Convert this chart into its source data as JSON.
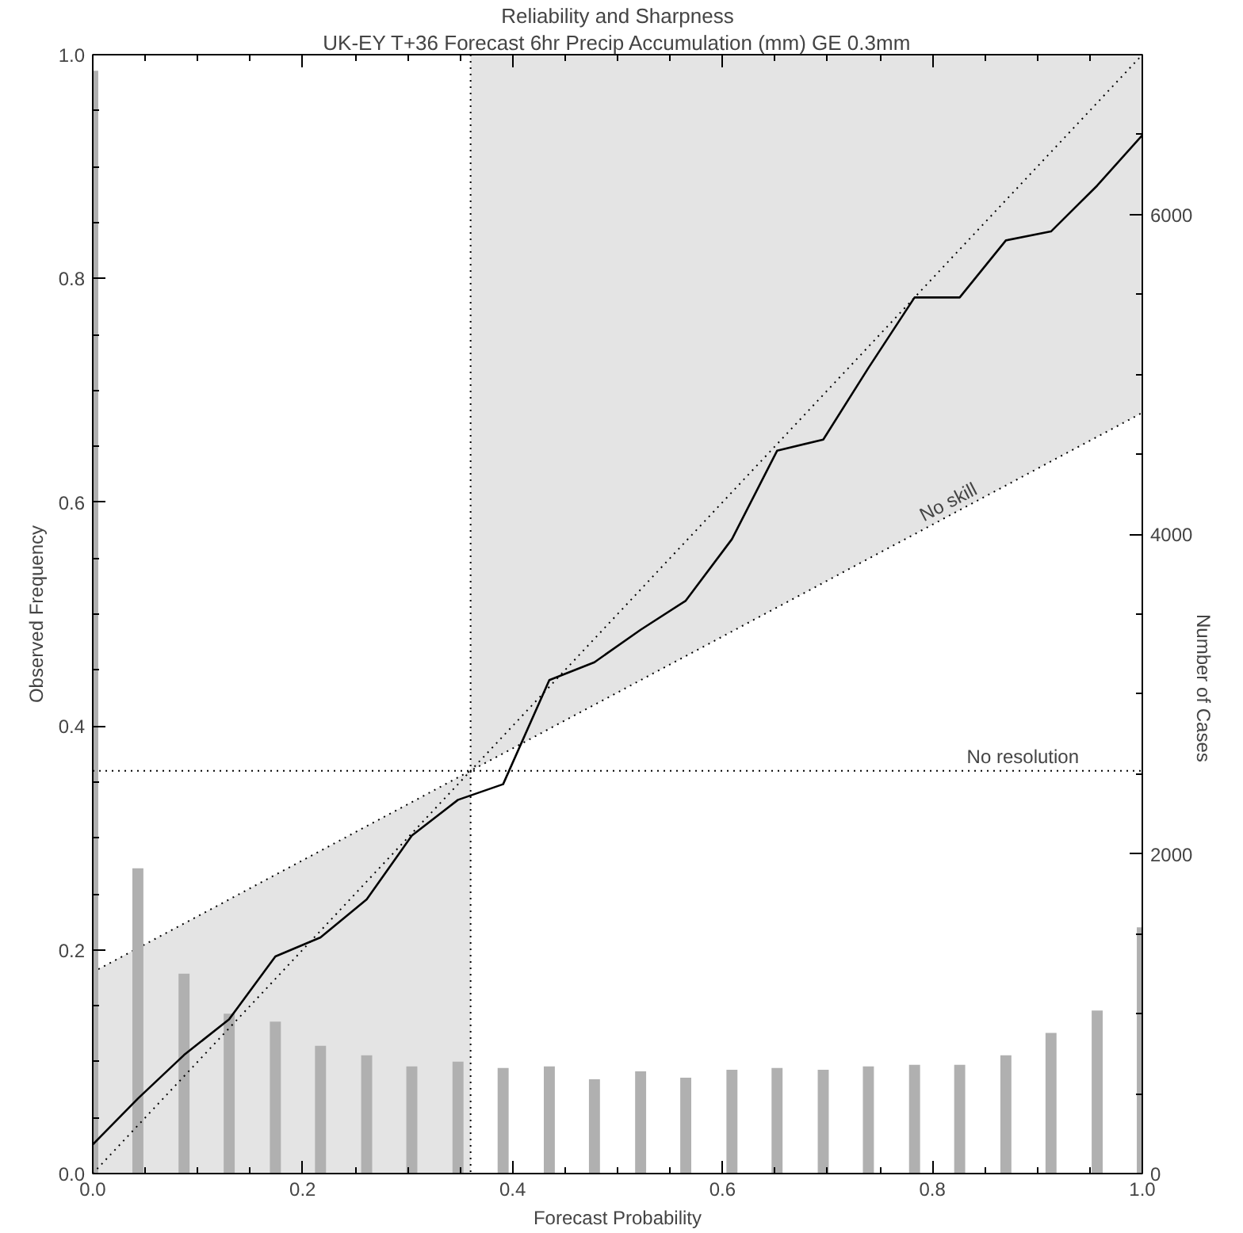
{
  "chart_data": {
    "type": "line",
    "title": "Reliability and Sharpness",
    "subtitle": "UK-EY T+36 Forecast 6hr Precip Accumulation (mm) GE 0.3mm",
    "xlabel": "Forecast Probability",
    "ylabel": "Observed Frequency",
    "y2label": "Number of Cases",
    "xlim": [
      0,
      1
    ],
    "ylim": [
      0,
      1
    ],
    "y2lim": [
      0,
      7000
    ],
    "xticks": [
      {
        "value": 0,
        "label": "0.0"
      },
      {
        "value": 0.2,
        "label": "0.2"
      },
      {
        "value": 0.4,
        "label": "0.4"
      },
      {
        "value": 0.6,
        "label": "0.6"
      },
      {
        "value": 0.8,
        "label": "0.8"
      },
      {
        "value": 1,
        "label": "1.0"
      }
    ],
    "yticks": [
      {
        "value": 0,
        "label": "0.0"
      },
      {
        "value": 0.2,
        "label": "0.2"
      },
      {
        "value": 0.4,
        "label": "0.4"
      },
      {
        "value": 0.6,
        "label": "0.6"
      },
      {
        "value": 0.8,
        "label": "0.8"
      },
      {
        "value": 1,
        "label": "1.0"
      }
    ],
    "y2ticks": [
      0,
      2000,
      4000,
      6000
    ],
    "grid": false,
    "marker": "none",
    "series": [
      {
        "type": "bar",
        "axis": "y2",
        "color": "#b0b0b0",
        "x": [
          0,
          0.043,
          0.087,
          0.13,
          0.174,
          0.217,
          0.261,
          0.304,
          0.348,
          0.391,
          0.435,
          0.478,
          0.522,
          0.565,
          0.609,
          0.652,
          0.696,
          0.739,
          0.783,
          0.826,
          0.87,
          0.913,
          0.957,
          1.0
        ],
        "values": [
          6900,
          1910,
          1250,
          1000,
          950,
          800,
          740,
          670,
          700,
          660,
          670,
          590,
          640,
          600,
          650,
          660,
          650,
          670,
          680,
          680,
          740,
          880,
          1020,
          1540
        ]
      },
      {
        "color": "#000000",
        "line_style": "solid",
        "x": [
          0,
          0.043,
          0.087,
          0.13,
          0.174,
          0.217,
          0.261,
          0.304,
          0.348,
          0.391,
          0.435,
          0.478,
          0.522,
          0.565,
          0.609,
          0.652,
          0.696,
          0.739,
          0.783,
          0.826,
          0.87,
          0.913,
          0.957,
          1.0
        ],
        "values": [
          0.026,
          0.067,
          0.106,
          0.138,
          0.194,
          0.211,
          0.245,
          0.302,
          0.334,
          0.348,
          0.441,
          0.457,
          0.486,
          0.512,
          0.567,
          0.646,
          0.656,
          0.72,
          0.783,
          0.783,
          0.834,
          0.842,
          0.883,
          0.928
        ]
      },
      {
        "color": "#000000",
        "line_style": "dotted",
        "x": [
          0,
          1
        ],
        "values": [
          0,
          1
        ]
      },
      {
        "color": "#000000",
        "line_style": "dotted",
        "x": [
          0,
          0.36,
          0.36,
          1
        ],
        "values": [
          0.18,
          0.36,
          0.36,
          0.68
        ],
        "lower": [
          0,
          0,
          0.36,
          0.68
        ],
        "upper": [
          0.18,
          0.36,
          1,
          1
        ]
      }
    ],
    "ref_lines": [
      {
        "axis": "y",
        "value": 0.36,
        "label": "No resolution",
        "line_style": "dotted"
      },
      {
        "axis": "x",
        "value": 0.36,
        "line_style": "dotted"
      }
    ],
    "annotations": [
      {
        "text": "No skill",
        "x": 0.82,
        "y": 0.59
      }
    ]
  }
}
